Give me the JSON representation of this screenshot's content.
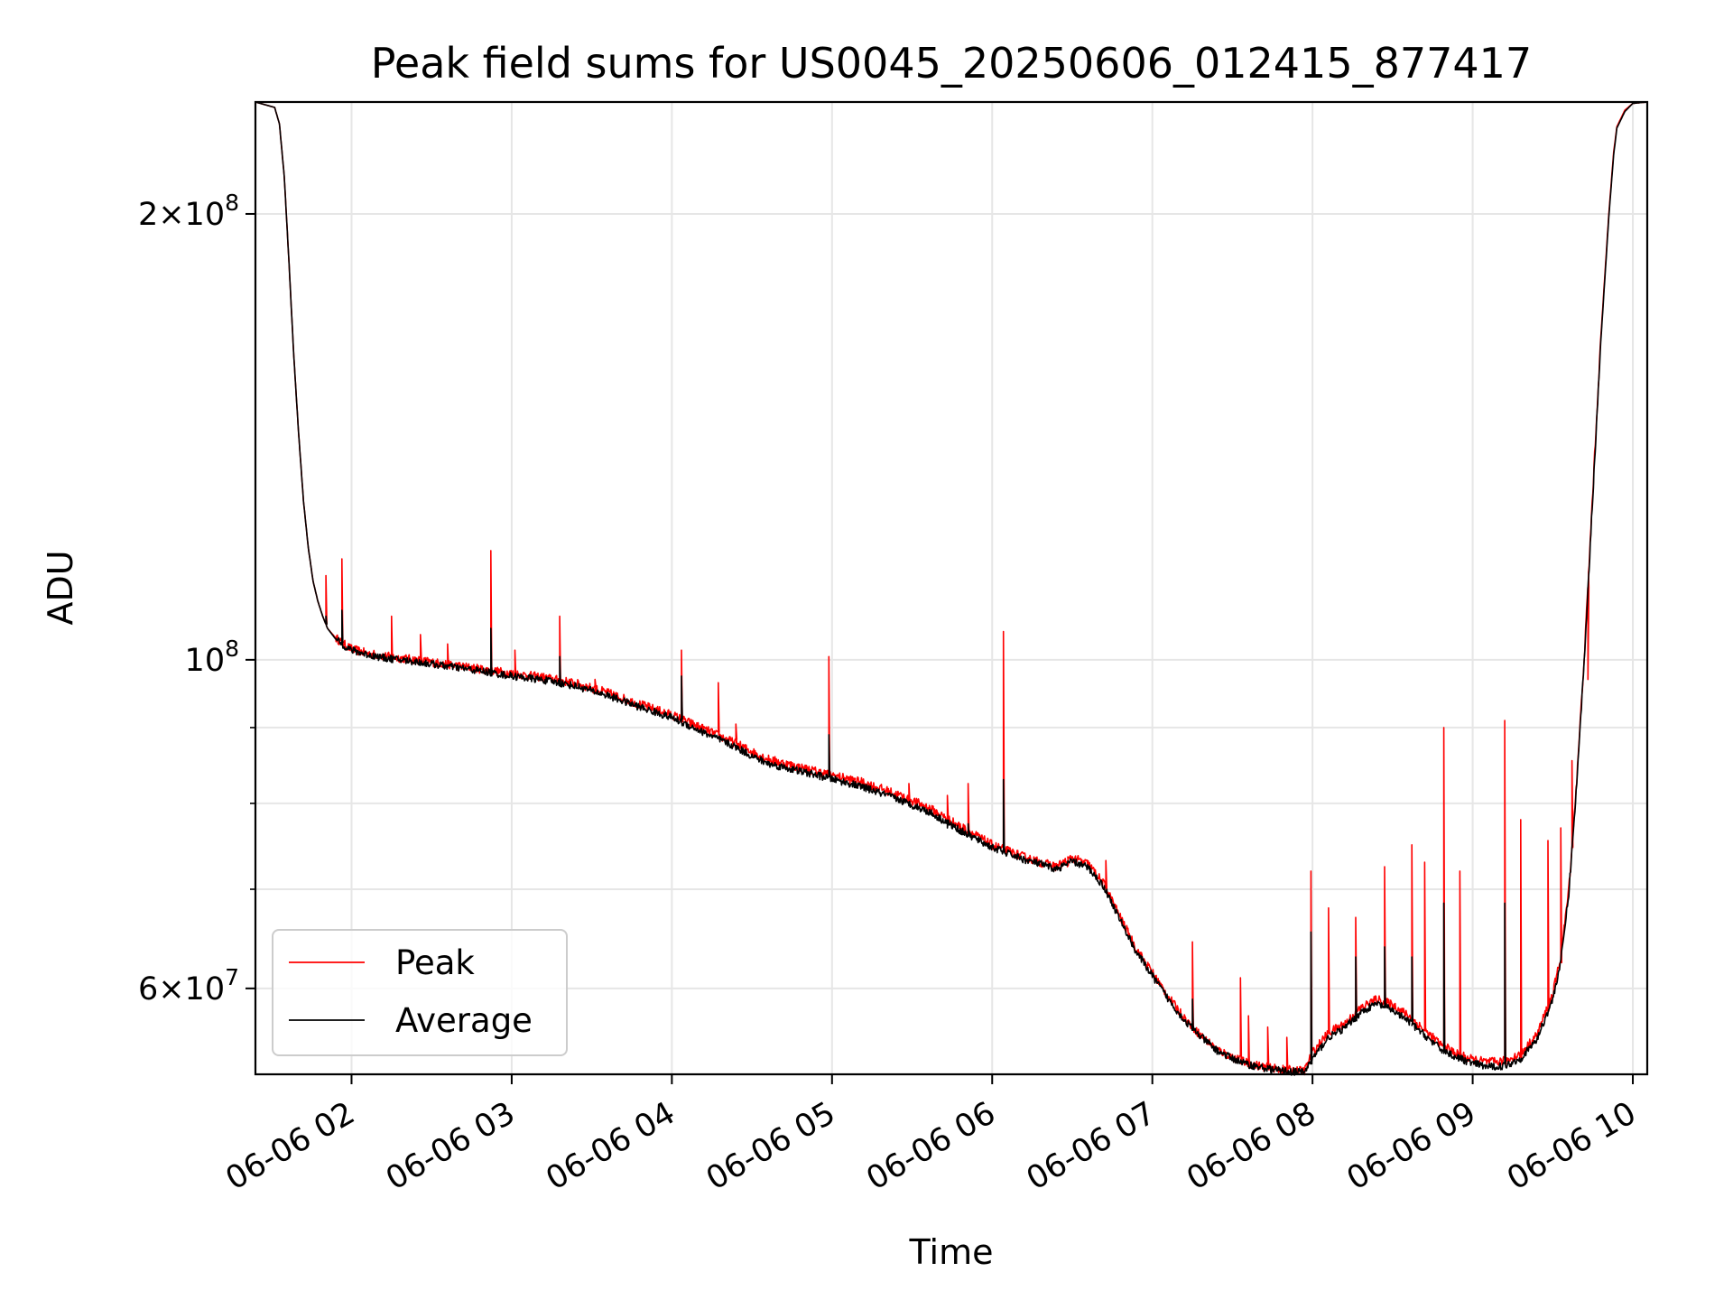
{
  "chart_data": {
    "type": "line",
    "title": "Peak field sums for US0045_20250606_012415_877417",
    "xlabel": "Time",
    "ylabel": "ADU",
    "yscale": "log",
    "xlim": [
      1.4,
      10.09
    ],
    "ylim": [
      52500000,
      238000000
    ],
    "grid": true,
    "legend": "lower-left",
    "x_ticks": [
      "06-06 02",
      "06-06 03",
      "06-06 04",
      "06-06 05",
      "06-06 06",
      "06-06 07",
      "06-06 08",
      "06-06 09",
      "06-06 10"
    ],
    "x_tick_values": [
      2,
      3,
      4,
      5,
      6,
      7,
      8,
      9,
      10
    ],
    "y_ticks": [
      {
        "value": 200000000,
        "mantissa": "2",
        "exponent": "8"
      },
      {
        "value": 100000000,
        "mantissa": "",
        "exponent": "8"
      },
      {
        "value": 60000000,
        "mantissa": "6",
        "exponent": "7"
      }
    ],
    "y_minor_ticks": [
      70000000,
      80000000,
      90000000
    ],
    "series": [
      {
        "name": "Peak",
        "color": "#ff0000",
        "x": [
          1.4,
          1.52,
          1.55,
          1.58,
          1.61,
          1.64,
          1.67,
          1.7,
          1.73,
          1.76,
          1.79,
          1.82,
          1.85,
          1.9,
          1.95,
          2.0,
          2.1,
          2.2,
          2.4,
          2.6,
          2.8,
          3.0,
          3.2,
          3.4,
          3.6,
          3.8,
          4.0,
          4.2,
          4.4,
          4.5,
          4.6,
          4.8,
          5.0,
          5.2,
          5.4,
          5.6,
          5.8,
          6.0,
          6.2,
          6.3,
          6.4,
          6.5,
          6.6,
          6.7,
          6.8,
          6.9,
          7.0,
          7.1,
          7.2,
          7.3,
          7.4,
          7.5,
          7.6,
          7.7,
          7.8,
          7.9,
          7.95,
          8.0,
          8.1,
          8.2,
          8.3,
          8.4,
          8.5,
          8.6,
          8.7,
          8.8,
          8.9,
          9.0,
          9.1,
          9.2,
          9.3,
          9.4,
          9.5,
          9.55,
          9.6,
          9.65,
          9.7,
          9.75,
          9.8,
          9.85,
          9.88,
          9.9,
          9.95,
          10.0,
          10.09
        ],
        "y": [
          238000000,
          236000000,
          230000000,
          212000000,
          185000000,
          160000000,
          142000000,
          128000000,
          119000000,
          113000000,
          109500000,
          107000000,
          105000000,
          103500000,
          102500000,
          101700000,
          101000000,
          100600000,
          100000000,
          99300000,
          98600000,
          97900000,
          97300000,
          96400000,
          95000000,
          93300000,
          91800000,
          89800000,
          87800000,
          86700000,
          85700000,
          84600000,
          83600000,
          82600000,
          81200000,
          79500000,
          77200000,
          75000000,
          73600000,
          73000000,
          72500000,
          73500000,
          72800000,
          70500000,
          67000000,
          63800000,
          61500000,
          59200000,
          57300000,
          55800000,
          54600000,
          53900000,
          53400000,
          53100000,
          52900000,
          52800000,
          52800000,
          54300000,
          56000000,
          56800000,
          58200000,
          59000000,
          58500000,
          57500000,
          56200000,
          55000000,
          54200000,
          53700000,
          53500000,
          53600000,
          54200000,
          55800000,
          59500000,
          63000000,
          70000000,
          83000000,
          102000000,
          130000000,
          165000000,
          200000000,
          220000000,
          229000000,
          235000000,
          237500000,
          238000000
        ]
      },
      {
        "name": "Average",
        "color": "#000000",
        "x": [
          1.4,
          1.52,
          1.55,
          1.58,
          1.61,
          1.64,
          1.67,
          1.7,
          1.73,
          1.76,
          1.79,
          1.82,
          1.85,
          1.9,
          1.95,
          2.0,
          2.1,
          2.2,
          2.4,
          2.6,
          2.8,
          3.0,
          3.2,
          3.4,
          3.6,
          3.8,
          4.0,
          4.2,
          4.4,
          4.5,
          4.6,
          4.8,
          5.0,
          5.2,
          5.4,
          5.6,
          5.8,
          6.0,
          6.2,
          6.3,
          6.4,
          6.5,
          6.6,
          6.7,
          6.8,
          6.9,
          7.0,
          7.1,
          7.2,
          7.3,
          7.4,
          7.5,
          7.6,
          7.7,
          7.8,
          7.9,
          7.95,
          8.0,
          8.1,
          8.2,
          8.3,
          8.4,
          8.5,
          8.6,
          8.7,
          8.8,
          8.9,
          9.0,
          9.1,
          9.2,
          9.3,
          9.4,
          9.5,
          9.55,
          9.6,
          9.65,
          9.7,
          9.75,
          9.8,
          9.85,
          9.88,
          9.9,
          9.95,
          10.0,
          10.09
        ],
        "y": [
          238000000,
          236000000,
          230000000,
          212000000,
          185000000,
          160000000,
          142000000,
          128000000,
          119000000,
          113000000,
          109500000,
          107000000,
          105000000,
          103300000,
          102300000,
          101500000,
          100800000,
          100300000,
          99700000,
          99000000,
          98300000,
          97500000,
          96900000,
          96000000,
          94600000,
          92900000,
          91400000,
          89300000,
          87300000,
          86100000,
          85100000,
          84100000,
          83100000,
          82000000,
          80600000,
          79000000,
          76700000,
          74700000,
          73300000,
          72800000,
          72200000,
          73100000,
          72400000,
          70200000,
          66700000,
          63500000,
          61200000,
          59000000,
          57100000,
          55700000,
          54500000,
          53800000,
          53300000,
          53000000,
          52800000,
          52700000,
          52700000,
          53800000,
          55600000,
          56400000,
          57800000,
          58600000,
          58000000,
          57000000,
          55800000,
          54600000,
          53900000,
          53400000,
          53100000,
          53200000,
          53800000,
          55400000,
          59000000,
          62500000,
          69500000,
          82500000,
          101500000,
          129000000,
          164000000,
          199000000,
          219000000,
          228500000,
          234500000,
          237500000,
          238000000
        ]
      }
    ],
    "peak_spikes": {
      "x": [
        1.84,
        1.94,
        2.25,
        2.43,
        2.6,
        2.87,
        3.02,
        3.3,
        3.52,
        4.06,
        4.29,
        4.4,
        4.98,
        5.14,
        5.48,
        5.72,
        5.85,
        6.07,
        6.47,
        6.71,
        7.25,
        7.55,
        7.6,
        7.72,
        7.84,
        7.99,
        8.1,
        8.27,
        8.45,
        8.62,
        8.7,
        8.82,
        8.92,
        9.2,
        9.3,
        9.47,
        9.55,
        9.62,
        9.72
      ],
      "y": [
        114000000,
        117000000,
        107000000,
        104000000,
        102500000,
        118500000,
        101500000,
        107000000,
        97000000,
        101500000,
        96500000,
        90500000,
        100500000,
        83000000,
        82500000,
        81000000,
        82500000,
        104500000,
        72500000,
        73200000,
        64500000,
        61000000,
        57500000,
        56500000,
        55600000,
        72000000,
        68000000,
        67000000,
        72500000,
        75000000,
        73000000,
        90000000,
        72000000,
        91000000,
        78000000,
        75500000,
        77000000,
        85500000,
        97000000
      ]
    },
    "avg_spikes": {
      "x": [
        1.84,
        1.94,
        2.87,
        3.3,
        4.06,
        4.98,
        5.72,
        5.85,
        6.07,
        7.25,
        7.99,
        8.27,
        8.45,
        8.62,
        8.82,
        9.2
      ],
      "y": [
        107000000,
        108000000,
        105000000,
        100500000,
        97500000,
        89000000,
        77000000,
        77500000,
        83000000,
        59000000,
        65500000,
        63000000,
        64000000,
        63000000,
        68500000,
        68500000
      ]
    }
  }
}
